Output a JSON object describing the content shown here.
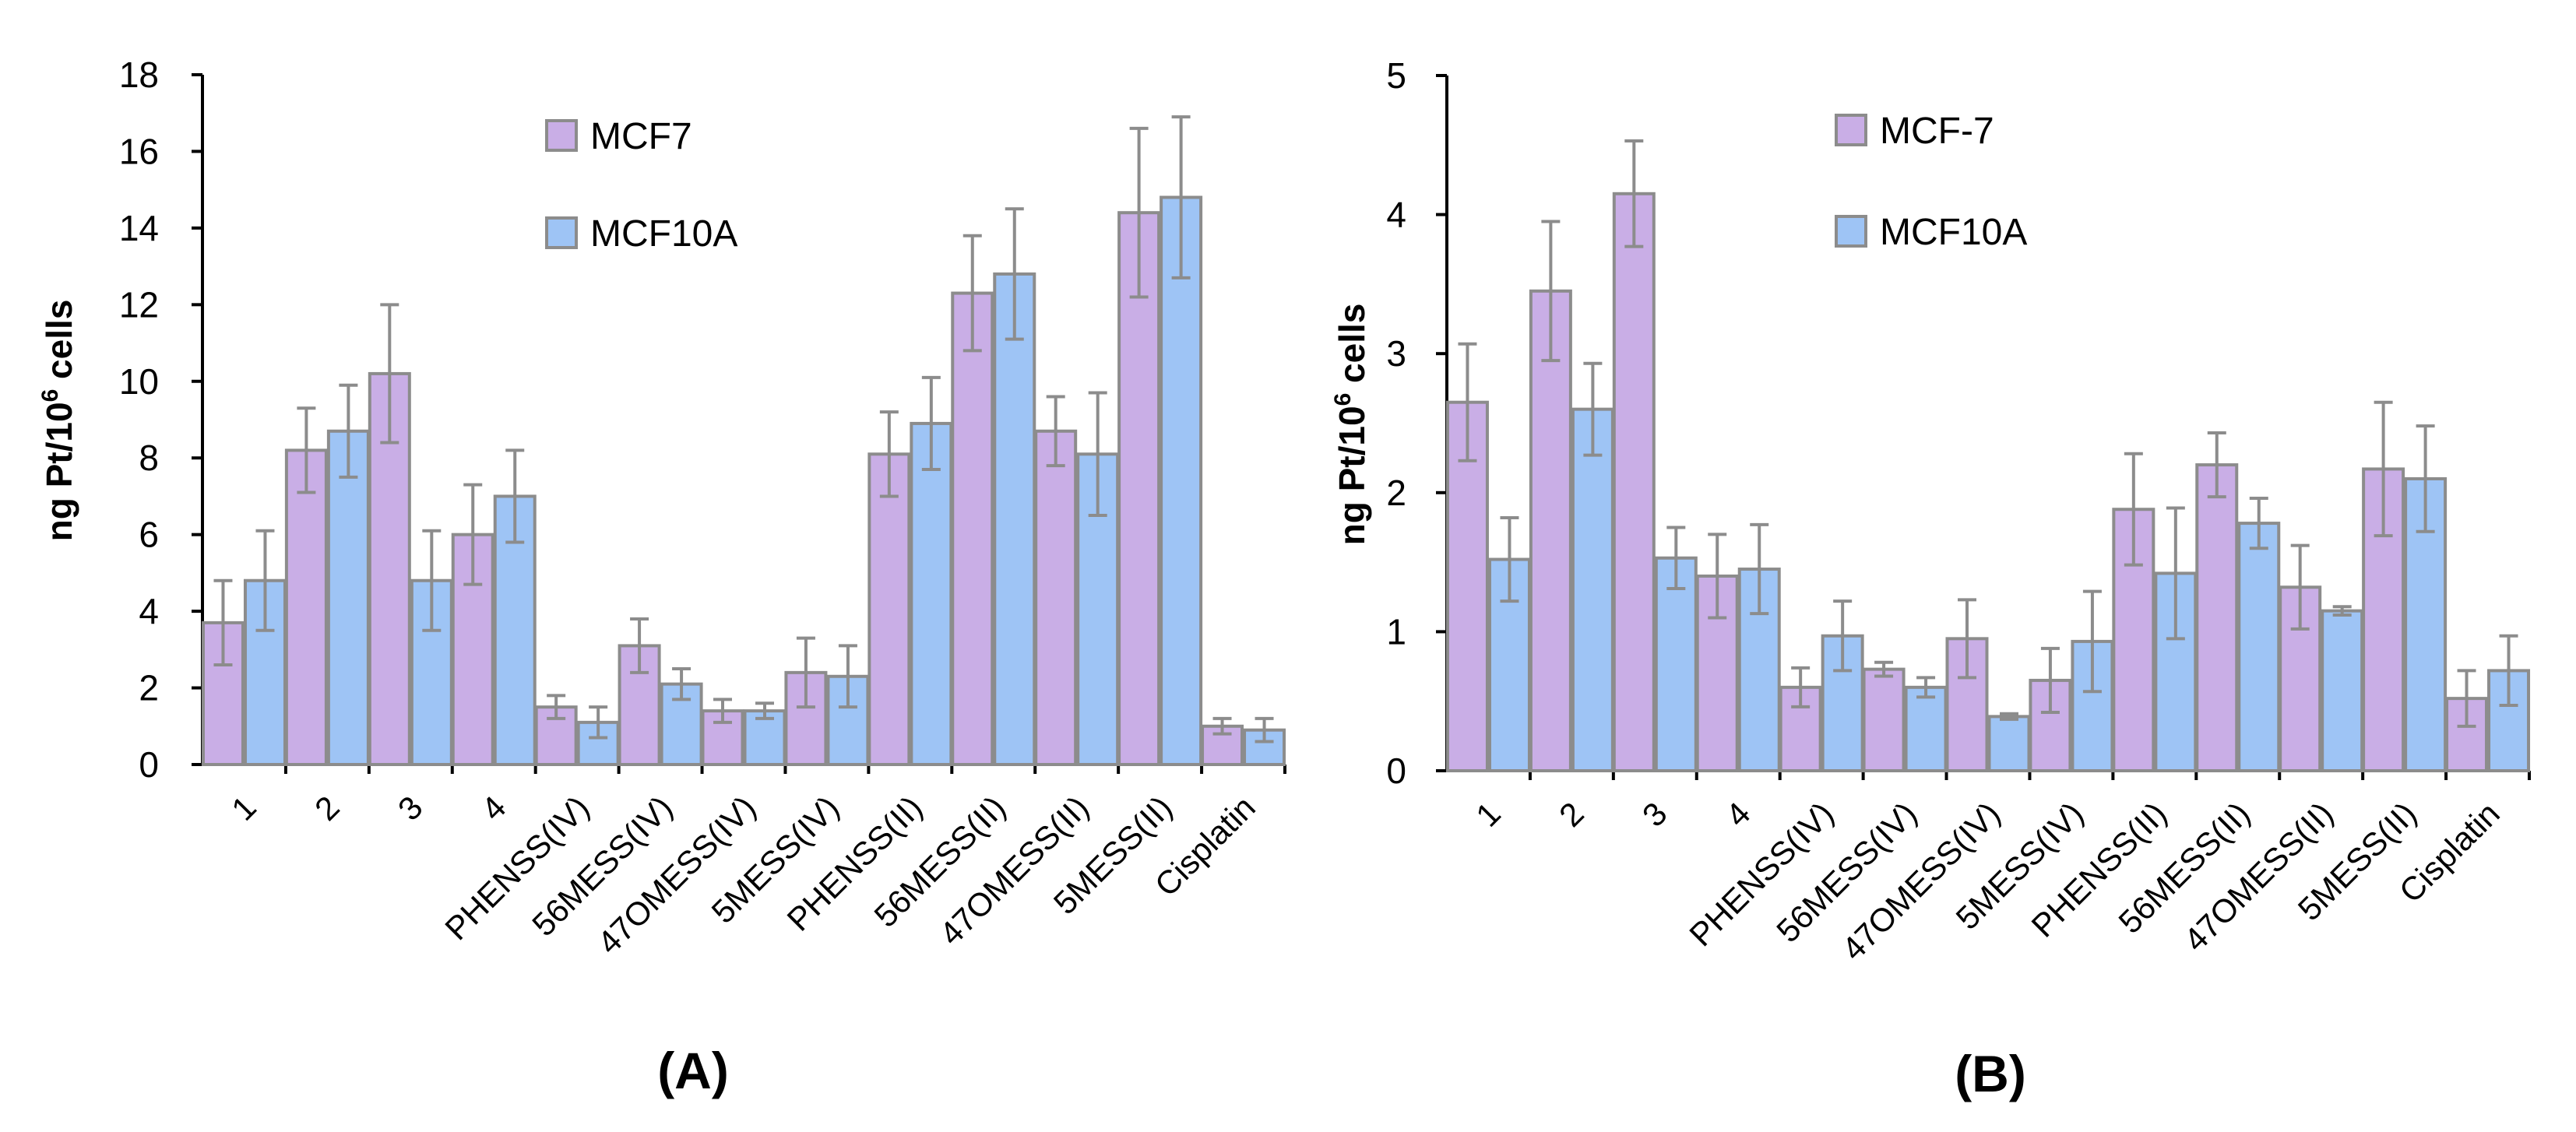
{
  "chart_data": [
    {
      "type": "bar",
      "panel": "(A)",
      "categories": [
        "1",
        "2",
        "3",
        "4",
        "PHENSS(IV)",
        "56MESS(IV)",
        "47OMESS(IV)",
        "5MESS(IV)",
        "PHENSS(II)",
        "56MESS(II)",
        "47OMESS(II)",
        "5MESS(II)",
        "Cisplatin"
      ],
      "series": [
        {
          "name": "MCF7",
          "color": "#c9aee6",
          "values": [
            3.7,
            8.2,
            10.2,
            6.0,
            1.5,
            3.1,
            1.4,
            2.4,
            8.1,
            12.3,
            8.7,
            14.4,
            1.0
          ],
          "errors": [
            1.1,
            1.1,
            1.8,
            1.3,
            0.3,
            0.7,
            0.3,
            0.9,
            1.1,
            1.5,
            0.9,
            2.2,
            0.2
          ]
        },
        {
          "name": "MCF10A",
          "color": "#9ec4f5",
          "values": [
            4.8,
            8.7,
            4.8,
            7.0,
            1.1,
            2.1,
            1.4,
            2.3,
            8.9,
            12.8,
            8.1,
            14.8,
            0.9
          ],
          "errors": [
            1.3,
            1.2,
            1.3,
            1.2,
            0.4,
            0.4,
            0.2,
            0.8,
            1.2,
            1.7,
            1.6,
            2.1,
            0.3
          ]
        }
      ],
      "ylabel": "ng Pt/10",
      "ylabel_sup": "6",
      "ylabel_suffix": " cells",
      "ylim": [
        0,
        18
      ],
      "yticks": [
        "0",
        "2",
        "4",
        "6",
        "8",
        "10",
        "12",
        "14",
        "16",
        "18"
      ],
      "legend_position": "top-center"
    },
    {
      "type": "bar",
      "panel": "(B)",
      "categories": [
        "1",
        "2",
        "3",
        "4",
        "PHENSS(IV)",
        "56MESS(IV)",
        "47OMESS(IV)",
        "5MESS(IV)",
        "PHENSS(II)",
        "56MESS(II)",
        "47OMESS(II)",
        "5MESS(II)",
        "Cisplatin"
      ],
      "series": [
        {
          "name": "MCF-7",
          "color": "#c9aee6",
          "values": [
            2.65,
            3.45,
            4.15,
            1.4,
            0.6,
            0.73,
            0.95,
            0.65,
            1.88,
            2.2,
            1.32,
            2.17,
            0.52
          ],
          "errors": [
            0.42,
            0.5,
            0.38,
            0.3,
            0.14,
            0.05,
            0.28,
            0.23,
            0.4,
            0.23,
            0.3,
            0.48,
            0.2
          ]
        },
        {
          "name": "MCF10A",
          "color": "#9ec4f5",
          "values": [
            1.52,
            2.6,
            1.53,
            1.45,
            0.97,
            0.6,
            0.39,
            0.93,
            1.42,
            1.78,
            1.15,
            2.1,
            0.72
          ],
          "errors": [
            0.3,
            0.33,
            0.22,
            0.32,
            0.25,
            0.07,
            0.02,
            0.36,
            0.47,
            0.18,
            0.03,
            0.38,
            0.25
          ]
        }
      ],
      "ylabel": "ng Pt/10",
      "ylabel_sup": "6",
      "ylabel_suffix": " cells",
      "ylim": [
        0,
        5
      ],
      "yticks": [
        "0",
        "1",
        "2",
        "3",
        "4",
        "5"
      ],
      "legend_position": "top-center"
    }
  ]
}
